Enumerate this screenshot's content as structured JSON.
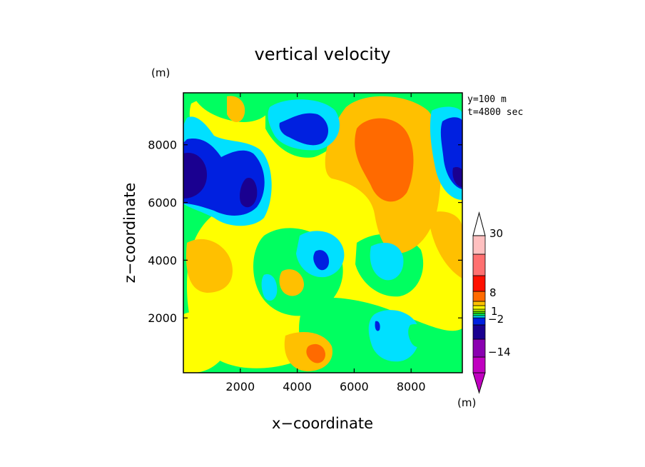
{
  "chart_data": {
    "type": "heatmap",
    "title": "vertical velocity",
    "xlabel": "x−coordinate",
    "ylabel": "z−coordinate",
    "x_unit": "(m)",
    "y_unit": "(m)",
    "annotation_lines": [
      "y=100  m",
      "t=4800 sec"
    ],
    "xlim": [
      0,
      9800
    ],
    "ylim": [
      100,
      9800
    ],
    "x_ticks": [
      2000,
      4000,
      6000,
      8000
    ],
    "y_ticks": [
      2000,
      4000,
      6000,
      8000
    ],
    "colorbar": {
      "labels": [
        {
          "value": 30,
          "text": "30"
        },
        {
          "value": 8,
          "text": "8"
        },
        {
          "value": 1,
          "text": "1"
        },
        {
          "value": -2,
          "text": "−2"
        },
        {
          "value": -14,
          "text": "−14"
        }
      ],
      "colors": [
        "#c000c0",
        "#8a00b0",
        "#1a0090",
        "#0020e0",
        "#00e0ff",
        "#00ff60",
        "#50e000",
        "#c0ff00",
        "#ffff00",
        "#ffc000",
        "#ff6a00",
        "#ff1000",
        "#ff7070",
        "#ffc0c0",
        "#ffffff"
      ]
    },
    "fill_colors": {
      "navy": "#1a0090",
      "blue": "#0020e0",
      "cyan": "#00e0ff",
      "green": "#00ff60",
      "yellow": "#ffff00",
      "gold": "#ffc000",
      "orange": "#ff6a00"
    },
    "grid": false,
    "legend": "right"
  }
}
